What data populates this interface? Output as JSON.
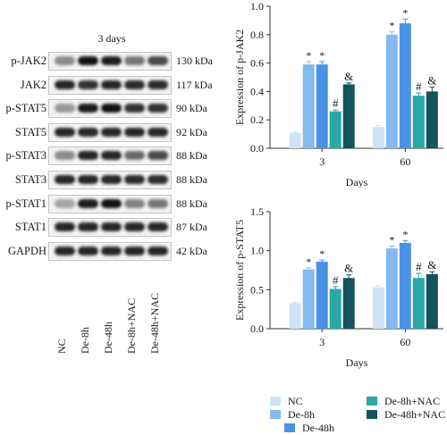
{
  "blot": {
    "title": "3 days",
    "lanes": [
      "NC",
      "De-8h",
      "De-48h",
      "De-8h+NAC",
      "De-48h+NAC"
    ],
    "rows": [
      {
        "protein": "p-JAK2",
        "kda": "130 kDa",
        "intensity": [
          0.45,
          1.0,
          0.95,
          0.55,
          0.75
        ]
      },
      {
        "protein": "JAK2",
        "kda": "117 kDa",
        "intensity": [
          0.9,
          0.85,
          0.9,
          0.88,
          0.88
        ]
      },
      {
        "protein": "p-STAT5",
        "kda": "90 kDa",
        "intensity": [
          0.4,
          0.95,
          1.0,
          0.85,
          0.85
        ]
      },
      {
        "protein": "STAT5",
        "kda": "92 kDa",
        "intensity": [
          0.9,
          0.9,
          0.9,
          0.9,
          0.9
        ]
      },
      {
        "protein": "p-STAT3",
        "kda": "88 kDa",
        "intensity": [
          0.45,
          0.9,
          0.9,
          0.6,
          0.75
        ]
      },
      {
        "protein": "STAT3",
        "kda": "88 kDa",
        "intensity": [
          0.9,
          0.9,
          0.9,
          0.88,
          0.88
        ]
      },
      {
        "protein": "p-STAT1",
        "kda": "88 kDa",
        "intensity": [
          0.35,
          0.95,
          1.0,
          0.5,
          0.55
        ]
      },
      {
        "protein": "STAT1",
        "kda": "87 kDa",
        "intensity": [
          0.9,
          0.9,
          0.9,
          0.9,
          0.9
        ]
      },
      {
        "protein": "GAPDH",
        "kda": "42 kDa",
        "intensity": [
          0.9,
          0.9,
          0.9,
          0.9,
          0.9
        ]
      }
    ]
  },
  "colors": {
    "NC": "#cfe3f7",
    "De-8h": "#85b9ef",
    "De-48h": "#4a92e8",
    "De-8h+NAC": "#2aa7a7",
    "De-48h+NAC": "#14525c"
  },
  "chart_data": [
    {
      "type": "bar",
      "xlabel": "Days",
      "ylabel": "Expression of p-JAK2",
      "categories": [
        "3",
        "60"
      ],
      "ylim": [
        0,
        1.0
      ],
      "yticks": [
        "0.0",
        "0.2",
        "0.4",
        "0.6",
        "0.8",
        "1.0"
      ],
      "series": [
        {
          "name": "NC",
          "values": [
            0.11,
            0.15
          ],
          "errors": [
            0.01,
            0.01
          ],
          "marks": [
            "",
            ""
          ]
        },
        {
          "name": "De-8h",
          "values": [
            0.59,
            0.8
          ],
          "errors": [
            0.02,
            0.02
          ],
          "marks": [
            "*",
            "*"
          ]
        },
        {
          "name": "De-48h",
          "values": [
            0.59,
            0.88
          ],
          "errors": [
            0.02,
            0.03
          ],
          "marks": [
            "*",
            "*"
          ]
        },
        {
          "name": "De-8h+NAC",
          "values": [
            0.26,
            0.37
          ],
          "errors": [
            0.01,
            0.02
          ],
          "marks": [
            "#",
            "#"
          ]
        },
        {
          "name": "De-48h+NAC",
          "values": [
            0.45,
            0.4
          ],
          "errors": [
            0.01,
            0.03
          ],
          "marks": [
            "&",
            "&"
          ]
        }
      ]
    },
    {
      "type": "bar",
      "xlabel": "Days",
      "ylabel": "Expression of p-STAT5",
      "categories": [
        "3",
        "60"
      ],
      "ylim": [
        0,
        1.5
      ],
      "yticks": [
        "0.0",
        "0.5",
        "1.0",
        "1.5"
      ],
      "series": [
        {
          "name": "NC",
          "values": [
            0.33,
            0.53
          ],
          "errors": [
            0.01,
            0.02
          ],
          "marks": [
            "",
            ""
          ]
        },
        {
          "name": "De-8h",
          "values": [
            0.76,
            1.03
          ],
          "errors": [
            0.02,
            0.03
          ],
          "marks": [
            "*",
            "*"
          ]
        },
        {
          "name": "De-48h",
          "values": [
            0.86,
            1.1
          ],
          "errors": [
            0.02,
            0.03
          ],
          "marks": [
            "*",
            "*"
          ]
        },
        {
          "name": "De-8h+NAC",
          "values": [
            0.51,
            0.65
          ],
          "errors": [
            0.03,
            0.06
          ],
          "marks": [
            "#",
            "#"
          ]
        },
        {
          "name": "De-48h+NAC",
          "values": [
            0.65,
            0.7
          ],
          "errors": [
            0.04,
            0.03
          ],
          "marks": [
            "&",
            "&"
          ]
        }
      ]
    }
  ],
  "legend": [
    "NC",
    "De-8h",
    "De-48h",
    "De-8h+NAC",
    "De-48h+NAC"
  ]
}
